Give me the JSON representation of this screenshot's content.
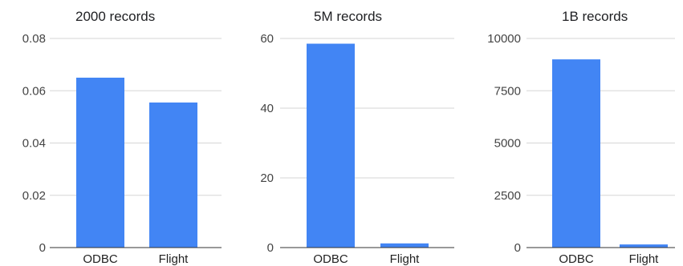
{
  "chart_data": [
    {
      "type": "bar",
      "title": "2000 records",
      "categories": [
        "ODBC",
        "Flight"
      ],
      "values": [
        0.065,
        0.0555
      ],
      "ylim": [
        0,
        0.08
      ],
      "yticks": [
        "0",
        "0.02",
        "0.04",
        "0.06",
        "0.08"
      ],
      "ytick_values": [
        0,
        0.02,
        0.04,
        0.06,
        0.08
      ],
      "grid": true,
      "color": "#4285F4"
    },
    {
      "type": "bar",
      "title": "5M records",
      "categories": [
        "ODBC",
        "Flight"
      ],
      "values": [
        58.5,
        1.2
      ],
      "ylim": [
        0,
        60
      ],
      "yticks": [
        "0",
        "20",
        "40",
        "60"
      ],
      "ytick_values": [
        0,
        20,
        40,
        60
      ],
      "grid": true,
      "color": "#4285F4"
    },
    {
      "type": "bar",
      "title": "1B records",
      "categories": [
        "ODBC",
        "Flight"
      ],
      "values": [
        9000,
        150
      ],
      "ylim": [
        0,
        10000
      ],
      "yticks": [
        "0",
        "2500",
        "5000",
        "7500",
        "10000"
      ],
      "ytick_values": [
        0,
        2500,
        5000,
        7500,
        10000
      ],
      "grid": true,
      "color": "#4285F4"
    }
  ]
}
